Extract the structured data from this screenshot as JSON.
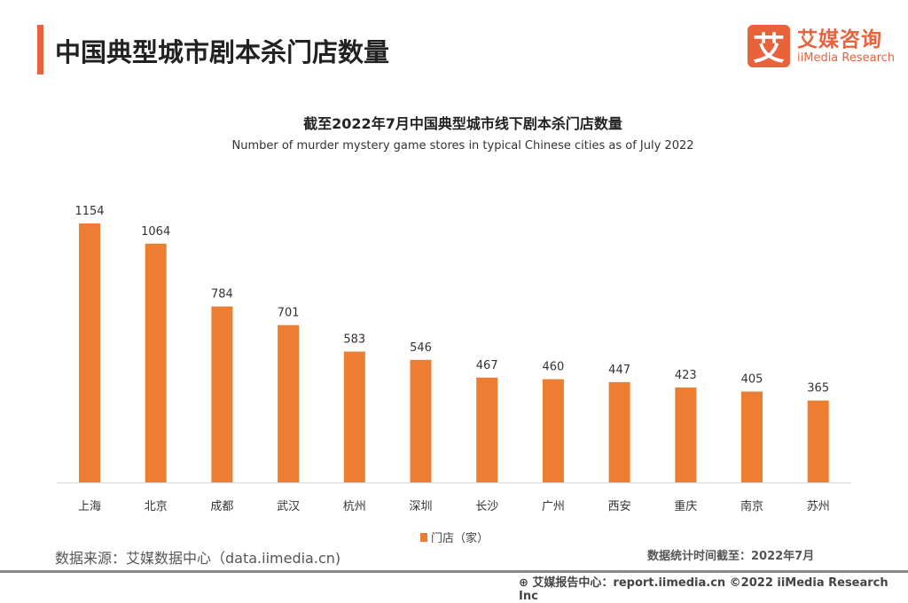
{
  "header": {
    "title": "中国典型城市剧本杀门店数量",
    "logo_mark": "艾",
    "logo_cn": "艾媒咨询",
    "logo_en": "iiMedia Research"
  },
  "colors": {
    "accent": "#e8623c",
    "bar": "#ed7d31"
  },
  "chart_data": {
    "type": "bar",
    "title": "截至2022年7月中国典型城市线下剧本杀门店数量",
    "subtitle": "Number of murder mystery game stores in typical Chinese cities as of July 2022",
    "categories": [
      "上海",
      "北京",
      "成都",
      "武汉",
      "杭州",
      "深圳",
      "长沙",
      "广州",
      "西安",
      "重庆",
      "南京",
      "苏州"
    ],
    "series": [
      {
        "name": "门店（家）",
        "values": [
          1154,
          1064,
          784,
          701,
          583,
          546,
          467,
          460,
          447,
          423,
          405,
          365
        ]
      }
    ],
    "ylim": [
      0,
      1154
    ],
    "grid": false,
    "legend": "bottom",
    "data_labels": true
  },
  "footer": {
    "source": "数据来源：艾媒数据中心（data.iimedia.cn)",
    "as_of": "数据统计时间截至：2022年7月",
    "credit": "艾媒报告中心：report.iimedia.cn   ©2022  iiMedia Research  Inc"
  }
}
